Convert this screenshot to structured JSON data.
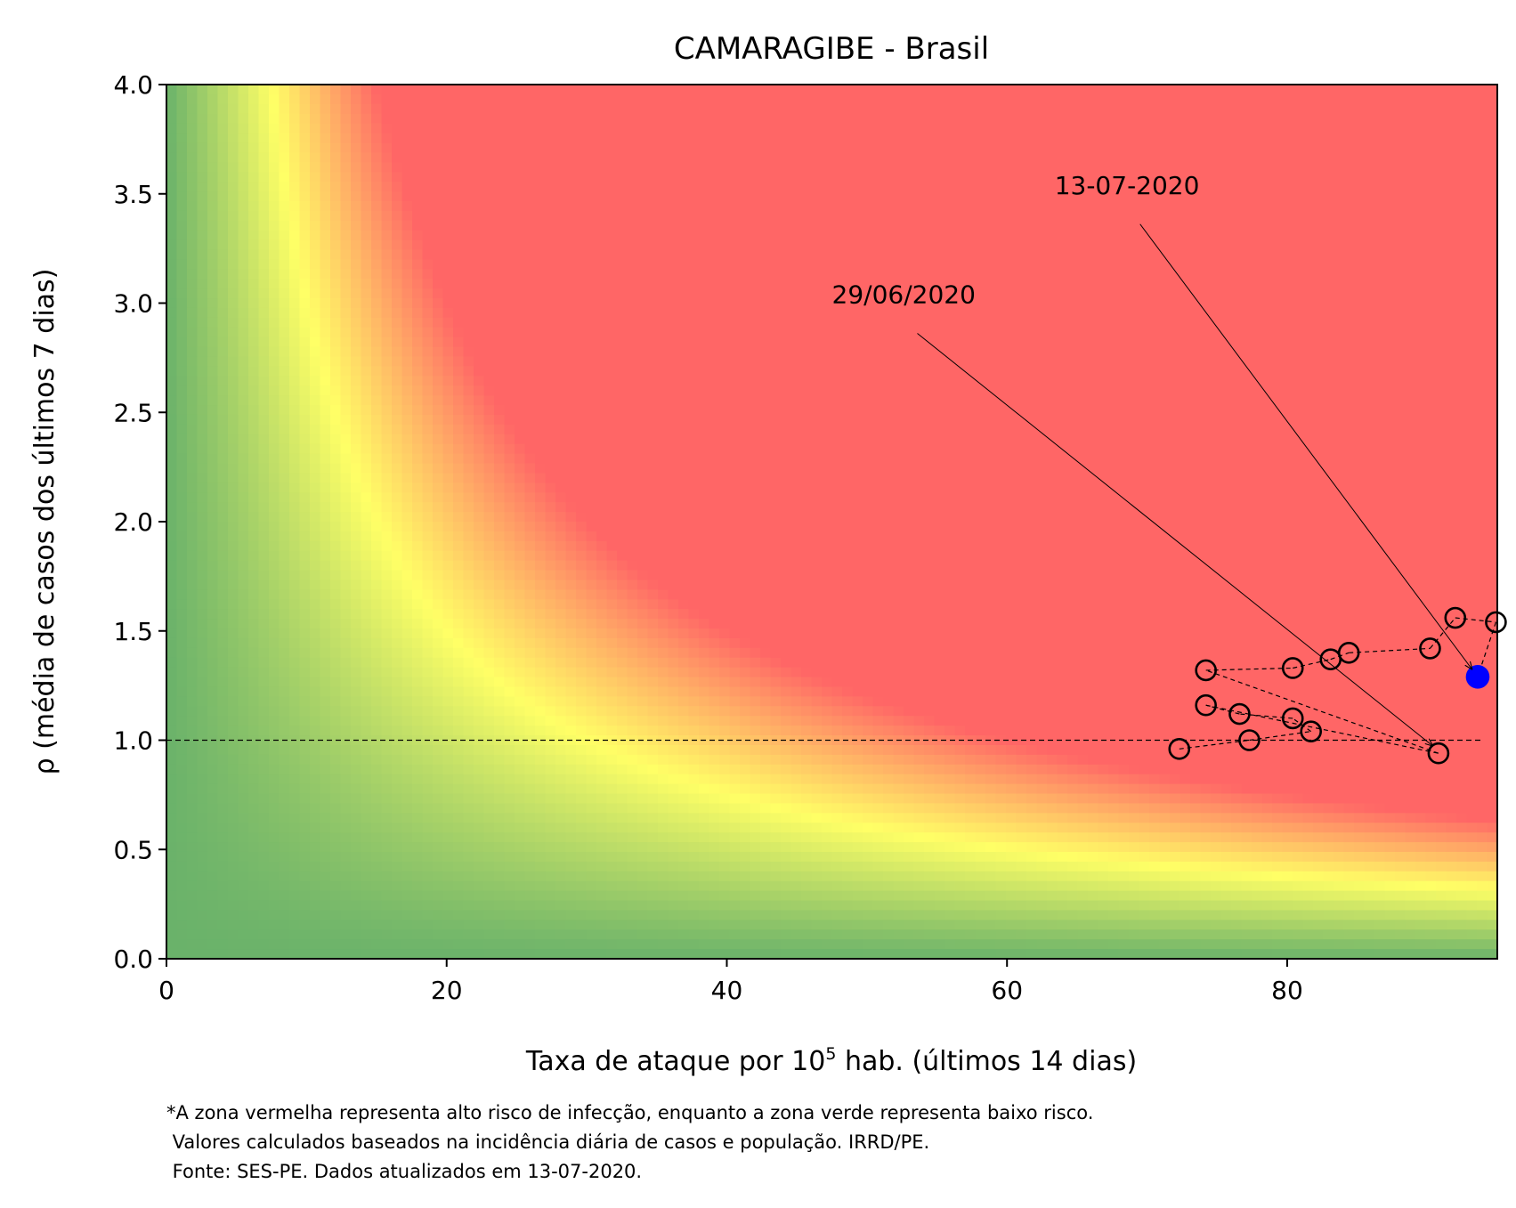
{
  "chart_data": {
    "type": "scatter",
    "title": "CAMARAGIBE - Brasil",
    "xlabel_prefix": "Taxa de ataque por 10",
    "xlabel_sup": "5",
    "xlabel_suffix": " hab. (últimos 14 dias)",
    "ylabel": "ρ (média de casos dos últimos 7 dias)",
    "xlim": [
      0,
      95
    ],
    "ylim": [
      0,
      4.0
    ],
    "x_ticks": [
      0,
      20,
      40,
      60,
      80
    ],
    "x_tick_labels": [
      "0",
      "20",
      "40",
      "60",
      "80"
    ],
    "y_ticks": [
      0,
      0.5,
      1.0,
      1.5,
      2.0,
      2.5,
      3.0,
      3.5,
      4.0
    ],
    "y_tick_labels": [
      "0.0",
      "0.5",
      "1.0",
      "1.5",
      "2.0",
      "2.5",
      "3.0",
      "3.5",
      "4.0"
    ],
    "grid": false,
    "reference_line_y": 1.0,
    "background": "risk gradient: green (low) → yellow → red (high) by product of attack rate and ρ",
    "colors": {
      "green": "#6ab26a",
      "yellow": "#ffff66",
      "red": "#ff6666",
      "current_point": "#0000ff",
      "marker_edge": "#000000"
    },
    "points": [
      {
        "x": 72.3,
        "y": 0.96
      },
      {
        "x": 77.3,
        "y": 1.0
      },
      {
        "x": 81.7,
        "y": 1.04
      },
      {
        "x": 80.4,
        "y": 1.1
      },
      {
        "x": 76.6,
        "y": 1.12
      },
      {
        "x": 74.2,
        "y": 1.16
      },
      {
        "x": 90.8,
        "y": 0.94
      },
      {
        "x": 74.2,
        "y": 1.32
      },
      {
        "x": 80.4,
        "y": 1.33
      },
      {
        "x": 83.1,
        "y": 1.37
      },
      {
        "x": 84.4,
        "y": 1.4
      },
      {
        "x": 90.2,
        "y": 1.42
      },
      {
        "x": 92.0,
        "y": 1.56
      },
      {
        "x": 94.9,
        "y": 1.54
      },
      {
        "x": 93.6,
        "y": 1.29
      }
    ],
    "annotations": [
      {
        "text": "29/06/2020",
        "text_x": 47.5,
        "text_y": 3.0,
        "target_x": 90.8,
        "target_y": 0.94
      },
      {
        "text": "13-07-2020",
        "text_x": 63.4,
        "text_y": 3.5,
        "target_x": 93.6,
        "target_y": 1.29
      }
    ]
  },
  "footnote": [
    "*A zona vermelha representa alto risco de infecção, enquanto a zona verde representa baixo risco.",
    " Valores calculados baseados na incidência diária de casos e população. IRRD/PE.",
    " Fonte: SES-PE. Dados atualizados em 13-07-2020."
  ]
}
